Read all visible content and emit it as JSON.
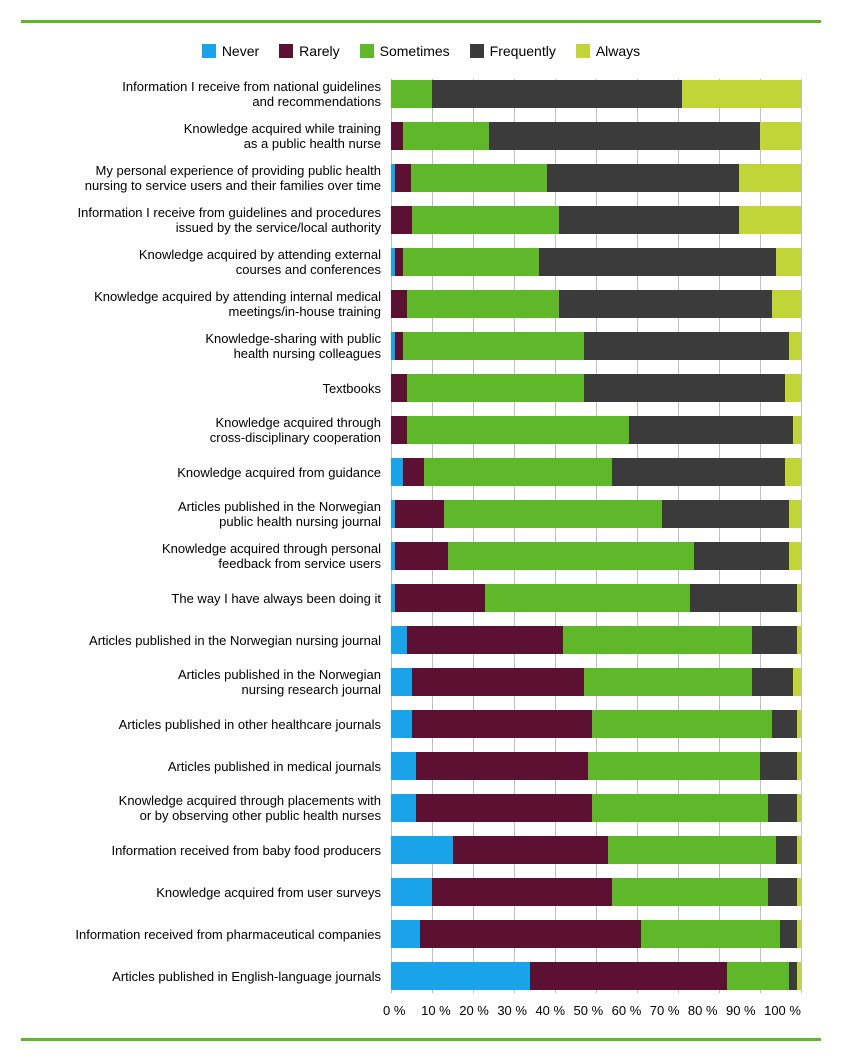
{
  "chart": {
    "type": "stacked-horizontal-bar",
    "legend": [
      {
        "label": "Never",
        "color": "#1aa3e8"
      },
      {
        "label": "Rarely",
        "color": "#5c1133"
      },
      {
        "label": "Sometimes",
        "color": "#5fb829"
      },
      {
        "label": "Frequently",
        "color": "#3b3b3b"
      },
      {
        "label": "Always",
        "color": "#c1d438"
      }
    ],
    "xlim": [
      0,
      100
    ],
    "xtick_step": 10,
    "xtick_labels": [
      "0 %",
      "10 %",
      "20 %",
      "30 %",
      "40 %",
      "50 %",
      "60 %",
      "70 %",
      "80 %",
      "90 %",
      "100 %"
    ],
    "grid_color": "#c0c0c0",
    "background": "#ffffff",
    "label_fontsize": 13,
    "legend_fontsize": 14,
    "rows": [
      {
        "label_lines": [
          "Information I receive from national guidelines",
          "and recommendations"
        ],
        "values": [
          0,
          0,
          10,
          61,
          29
        ]
      },
      {
        "label_lines": [
          "Knowledge acquired while training",
          "as a public health nurse"
        ],
        "values": [
          0,
          3,
          21,
          66,
          10
        ]
      },
      {
        "label_lines": [
          "My personal experience of providing public health",
          "nursing to service users and their families over time"
        ],
        "values": [
          1,
          4,
          33,
          47,
          15
        ]
      },
      {
        "label_lines": [
          "Information I receive from guidelines and procedures",
          "issued by the service/local authority"
        ],
        "values": [
          0,
          5,
          36,
          44,
          15
        ]
      },
      {
        "label_lines": [
          "Knowledge acquired by attending external",
          "courses and conferences"
        ],
        "values": [
          1,
          2,
          33,
          58,
          6
        ]
      },
      {
        "label_lines": [
          "Knowledge acquired by attending internal medical",
          "meetings/in-house training"
        ],
        "values": [
          0,
          4,
          37,
          52,
          7
        ]
      },
      {
        "label_lines": [
          "Knowledge-sharing with public",
          "health nursing colleagues"
        ],
        "values": [
          1,
          2,
          44,
          50,
          3
        ]
      },
      {
        "label_lines": [
          "Textbooks"
        ],
        "values": [
          0,
          4,
          43,
          49,
          4
        ]
      },
      {
        "label_lines": [
          "Knowledge acquired through",
          "cross-disciplinary cooperation"
        ],
        "values": [
          0,
          4,
          54,
          40,
          2
        ]
      },
      {
        "label_lines": [
          "Knowledge acquired from guidance"
        ],
        "values": [
          3,
          5,
          46,
          42,
          4
        ]
      },
      {
        "label_lines": [
          "Articles published in the Norwegian",
          "public health nursing journal"
        ],
        "values": [
          1,
          12,
          53,
          31,
          3
        ]
      },
      {
        "label_lines": [
          "Knowledge acquired through personal",
          "feedback from service users"
        ],
        "values": [
          1,
          13,
          60,
          23,
          3
        ]
      },
      {
        "label_lines": [
          "The way I have always been doing it"
        ],
        "values": [
          1,
          22,
          50,
          26,
          1
        ]
      },
      {
        "label_lines": [
          "Articles published in the Norwegian nursing journal"
        ],
        "values": [
          4,
          38,
          46,
          11,
          1
        ]
      },
      {
        "label_lines": [
          "Articles published in the Norwegian",
          "nursing research journal"
        ],
        "values": [
          5,
          42,
          41,
          10,
          2
        ]
      },
      {
        "label_lines": [
          "Articles published in other healthcare journals"
        ],
        "values": [
          5,
          44,
          44,
          6,
          1
        ]
      },
      {
        "label_lines": [
          "Articles published in medical journals"
        ],
        "values": [
          6,
          42,
          42,
          9,
          1
        ]
      },
      {
        "label_lines": [
          "Knowledge acquired through placements with",
          "or by observing other public health nurses"
        ],
        "values": [
          6,
          43,
          43,
          7,
          1
        ]
      },
      {
        "label_lines": [
          "Information received from baby food producers"
        ],
        "values": [
          15,
          38,
          41,
          5,
          1
        ]
      },
      {
        "label_lines": [
          "Knowledge acquired from user surveys"
        ],
        "values": [
          10,
          44,
          38,
          7,
          1
        ]
      },
      {
        "label_lines": [
          "Information received from pharmaceutical companies"
        ],
        "values": [
          7,
          54,
          34,
          4,
          1
        ]
      },
      {
        "label_lines": [
          "Articles published in English-language journals"
        ],
        "values": [
          34,
          48,
          15,
          2,
          1
        ]
      }
    ]
  }
}
